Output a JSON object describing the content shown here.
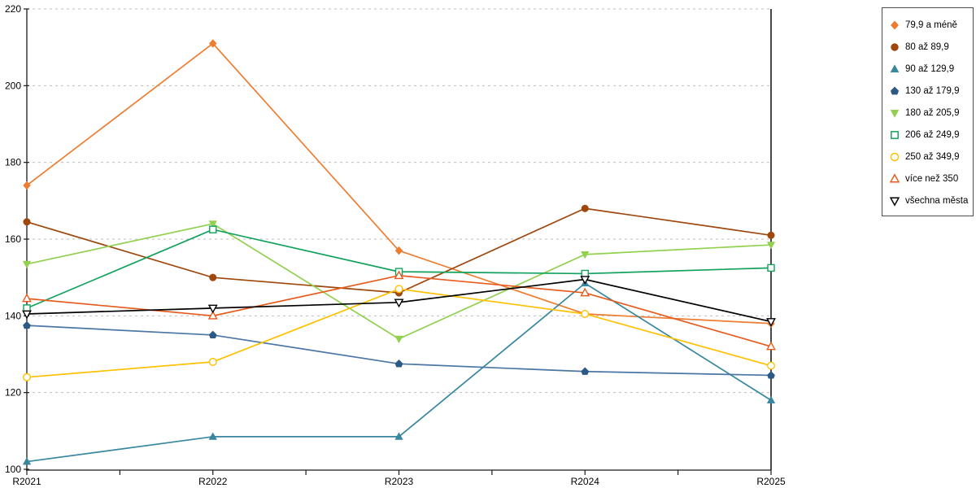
{
  "chart_data": {
    "type": "line",
    "title": "",
    "xlabel": "",
    "ylabel": "",
    "categories": [
      "R2021",
      "R2022",
      "R2023",
      "R2024",
      "R2025"
    ],
    "yticks": [
      100,
      120,
      140,
      160,
      180,
      200,
      220
    ],
    "ylim": [
      100,
      220
    ],
    "grid": "horizontal-dashed",
    "legend_position": "right-outside",
    "plot_colors": {
      "gridline": "#bdbdbd",
      "axis": "#1a1a1a",
      "background": "#ffffff"
    },
    "series": [
      {
        "name": "79,9 a méně",
        "marker": "diamond",
        "marker_style": "filled",
        "color": "#ED7D31",
        "line_color": "#ED7D31",
        "values": [
          174,
          211,
          157,
          140.5,
          138
        ]
      },
      {
        "name": "80 až 89,9",
        "marker": "circle",
        "marker_style": "filled",
        "color": "#9E480E",
        "line_color": "#9E480E",
        "values": [
          164.5,
          150,
          146,
          168,
          161
        ]
      },
      {
        "name": "90 až 129,9",
        "marker": "triangle",
        "marker_style": "filled",
        "color": "#38879F",
        "line_color": "#38879F",
        "values": [
          102,
          108.5,
          108.5,
          148.5,
          118
        ]
      },
      {
        "name": "130 až 179,9",
        "marker": "pentagon",
        "marker_style": "filled",
        "color": "#2C5985",
        "line_color": "#4C76A4",
        "values": [
          137.5,
          135,
          127.5,
          125.5,
          124.5
        ]
      },
      {
        "name": "180 až 205,9",
        "marker": "triangle-down",
        "marker_style": "filled",
        "color": "#92D050",
        "line_color": "#92D050",
        "values": [
          153.5,
          164,
          134,
          156,
          158.5
        ]
      },
      {
        "name": "206 až 249,9",
        "marker": "square",
        "marker_style": "open",
        "color": "#12A25E",
        "line_color": "#12A25E",
        "values": [
          142,
          162.5,
          151.5,
          151,
          152.5
        ]
      },
      {
        "name": "250 až 349,9",
        "marker": "circle",
        "marker_style": "open",
        "color": "#FFC000",
        "line_color": "#FFC000",
        "values": [
          124,
          128,
          147,
          140.5,
          127
        ]
      },
      {
        "name": "více než 350",
        "marker": "triangle",
        "marker_style": "open",
        "color": "#E75B1E",
        "line_color": "#E75B1E",
        "values": [
          144.5,
          140,
          150.5,
          146,
          132
        ]
      },
      {
        "name": "všechna města",
        "marker": "triangle-down",
        "marker_style": "open",
        "color": "#000000",
        "line_color": "#000000",
        "values": [
          140.5,
          142,
          143.5,
          149.5,
          138.5
        ]
      }
    ]
  }
}
